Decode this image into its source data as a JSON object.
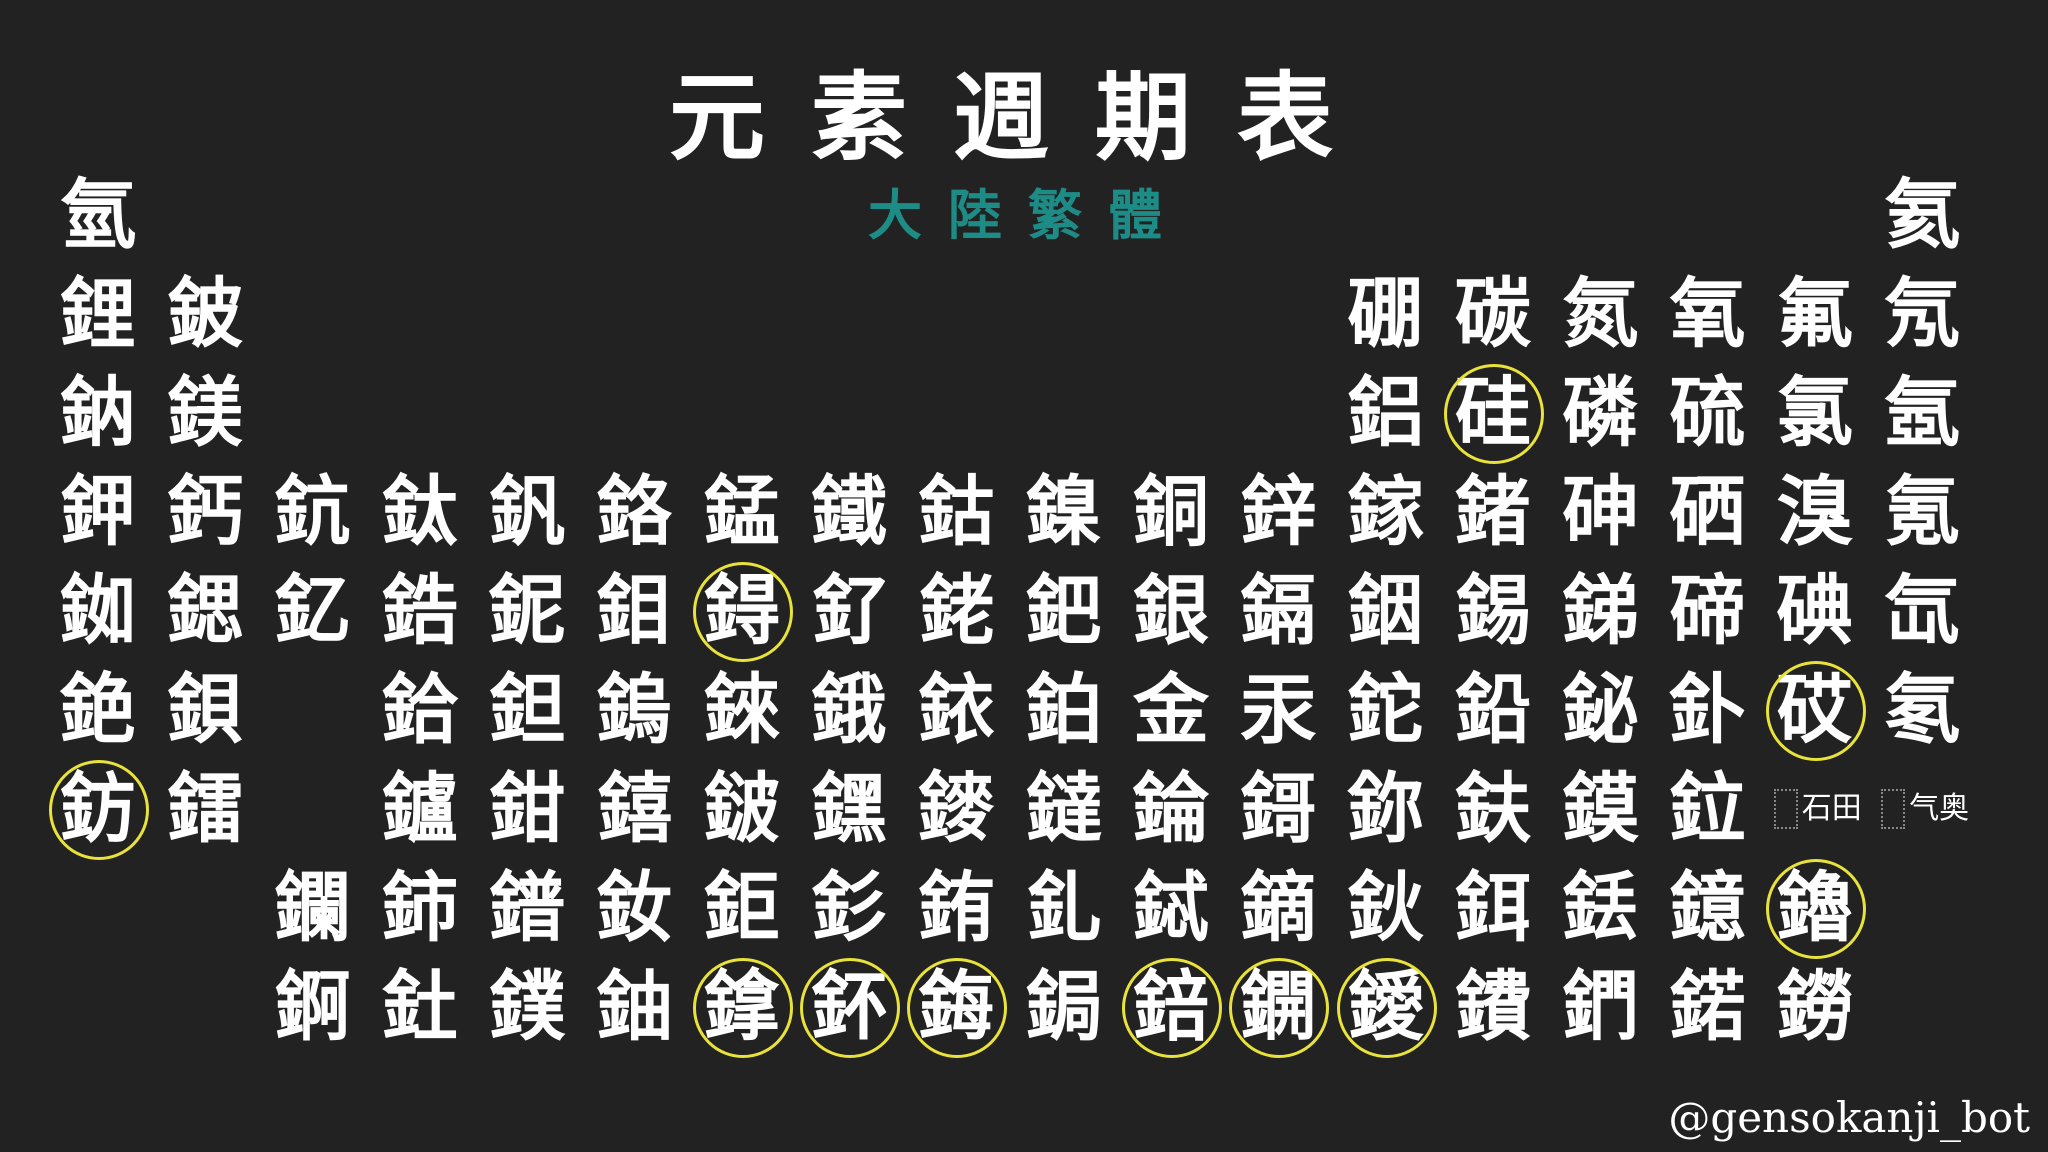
{
  "title": "元素週期表",
  "subtitle": "大陸繁體",
  "watermark": "@gensokanji_bot",
  "highlight_color": "#e8e23a",
  "subtitle_color": "#1e8c86",
  "rows": [
    [
      {
        "text": "氫",
        "col": 1
      },
      {
        "text": "氦",
        "col": 18
      }
    ],
    [
      {
        "text": "鋰",
        "col": 1
      },
      {
        "text": "鈹",
        "col": 2
      },
      {
        "text": "硼",
        "col": 13
      },
      {
        "text": "碳",
        "col": 14
      },
      {
        "text": "氮",
        "col": 15
      },
      {
        "text": "氧",
        "col": 16
      },
      {
        "text": "氟",
        "col": 17
      },
      {
        "text": "氖",
        "col": 18
      }
    ],
    [
      {
        "text": "鈉",
        "col": 1
      },
      {
        "text": "鎂",
        "col": 2
      },
      {
        "text": "鋁",
        "col": 13
      },
      {
        "text": "硅",
        "col": 14,
        "circled": true
      },
      {
        "text": "磷",
        "col": 15
      },
      {
        "text": "硫",
        "col": 16
      },
      {
        "text": "氯",
        "col": 17
      },
      {
        "text": "氬",
        "col": 18
      }
    ],
    [
      {
        "text": "鉀",
        "col": 1
      },
      {
        "text": "鈣",
        "col": 2
      },
      {
        "text": "鈧",
        "col": 3
      },
      {
        "text": "鈦",
        "col": 4
      },
      {
        "text": "釩",
        "col": 5
      },
      {
        "text": "鉻",
        "col": 6
      },
      {
        "text": "錳",
        "col": 7
      },
      {
        "text": "鐵",
        "col": 8
      },
      {
        "text": "鈷",
        "col": 9
      },
      {
        "text": "鎳",
        "col": 10
      },
      {
        "text": "銅",
        "col": 11
      },
      {
        "text": "鋅",
        "col": 12
      },
      {
        "text": "鎵",
        "col": 13
      },
      {
        "text": "鍺",
        "col": 14
      },
      {
        "text": "砷",
        "col": 15
      },
      {
        "text": "硒",
        "col": 16
      },
      {
        "text": "溴",
        "col": 17
      },
      {
        "text": "氪",
        "col": 18
      }
    ],
    [
      {
        "text": "銣",
        "col": 1
      },
      {
        "text": "鍶",
        "col": 2
      },
      {
        "text": "釔",
        "col": 3
      },
      {
        "text": "鋯",
        "col": 4
      },
      {
        "text": "鈮",
        "col": 5
      },
      {
        "text": "鉬",
        "col": 6
      },
      {
        "text": "鍀",
        "col": 7,
        "circled": true
      },
      {
        "text": "釕",
        "col": 8
      },
      {
        "text": "銠",
        "col": 9
      },
      {
        "text": "鈀",
        "col": 10
      },
      {
        "text": "銀",
        "col": 11
      },
      {
        "text": "鎘",
        "col": 12
      },
      {
        "text": "銦",
        "col": 13
      },
      {
        "text": "錫",
        "col": 14
      },
      {
        "text": "銻",
        "col": 15
      },
      {
        "text": "碲",
        "col": 16
      },
      {
        "text": "碘",
        "col": 17
      },
      {
        "text": "氙",
        "col": 18
      }
    ],
    [
      {
        "text": "銫",
        "col": 1
      },
      {
        "text": "鋇",
        "col": 2
      },
      {
        "text": "鉿",
        "col": 4
      },
      {
        "text": "鉭",
        "col": 5
      },
      {
        "text": "鎢",
        "col": 6
      },
      {
        "text": "錸",
        "col": 7
      },
      {
        "text": "鋨",
        "col": 8
      },
      {
        "text": "銥",
        "col": 9
      },
      {
        "text": "鉑",
        "col": 10
      },
      {
        "text": "金",
        "col": 11
      },
      {
        "text": "汞",
        "col": 12
      },
      {
        "text": "鉈",
        "col": 13
      },
      {
        "text": "鉛",
        "col": 14
      },
      {
        "text": "鉍",
        "col": 15
      },
      {
        "text": "釙",
        "col": 16
      },
      {
        "text": "砹",
        "col": 17,
        "circled": true
      },
      {
        "text": "氡",
        "col": 18
      }
    ],
    [
      {
        "text": "鈁",
        "col": 1,
        "circled": true
      },
      {
        "text": "鐳",
        "col": 2
      },
      {
        "text": "鑪",
        "col": 4
      },
      {
        "text": "鉗",
        "col": 5
      },
      {
        "text": "𨭎",
        "col": 6
      },
      {
        "text": "𨨏",
        "col": 7
      },
      {
        "text": "𨭆",
        "col": 8
      },
      {
        "text": "䥑",
        "col": 9
      },
      {
        "text": "鐽",
        "col": 10
      },
      {
        "text": "錀",
        "col": 11
      },
      {
        "text": "鎶",
        "col": 12
      },
      {
        "text": "鉨",
        "col": 13
      },
      {
        "text": "鈇",
        "col": 14
      },
      {
        "text": "鏌",
        "col": 15
      },
      {
        "text": "鉝",
        "col": 16
      },
      {
        "text": "石田",
        "col": 17,
        "small": true
      },
      {
        "text": "气奥",
        "col": 18,
        "small": true
      }
    ],
    [
      {
        "text": "鑭",
        "col": 3
      },
      {
        "text": "鈰",
        "col": 4
      },
      {
        "text": "鐠",
        "col": 5
      },
      {
        "text": "釹",
        "col": 6
      },
      {
        "text": "鉅",
        "col": 7
      },
      {
        "text": "釤",
        "col": 8
      },
      {
        "text": "銪",
        "col": 9
      },
      {
        "text": "釓",
        "col": 10
      },
      {
        "text": "鋱",
        "col": 11
      },
      {
        "text": "鏑",
        "col": 12
      },
      {
        "text": "鈥",
        "col": 13
      },
      {
        "text": "鉺",
        "col": 14
      },
      {
        "text": "銩",
        "col": 15
      },
      {
        "text": "鐿",
        "col": 16
      },
      {
        "text": "鑥",
        "col": 17,
        "circled": true
      }
    ],
    [
      {
        "text": "錒",
        "col": 3
      },
      {
        "text": "釷",
        "col": 4
      },
      {
        "text": "鏷",
        "col": 5
      },
      {
        "text": "鈾",
        "col": 6
      },
      {
        "text": "鎿",
        "col": 7,
        "circled": true
      },
      {
        "text": "鈈",
        "col": 8,
        "circled": true
      },
      {
        "text": "鋂",
        "col": 9,
        "circled": true
      },
      {
        "text": "鋦",
        "col": 10
      },
      {
        "text": "錇",
        "col": 11,
        "circled": true
      },
      {
        "text": "鐦",
        "col": 12,
        "circled": true
      },
      {
        "text": "鑀",
        "col": 13,
        "circled": true
      },
      {
        "text": "鐨",
        "col": 14
      },
      {
        "text": "鍆",
        "col": 15
      },
      {
        "text": "鍩",
        "col": 16
      },
      {
        "text": "鐒",
        "col": 17
      }
    ]
  ]
}
